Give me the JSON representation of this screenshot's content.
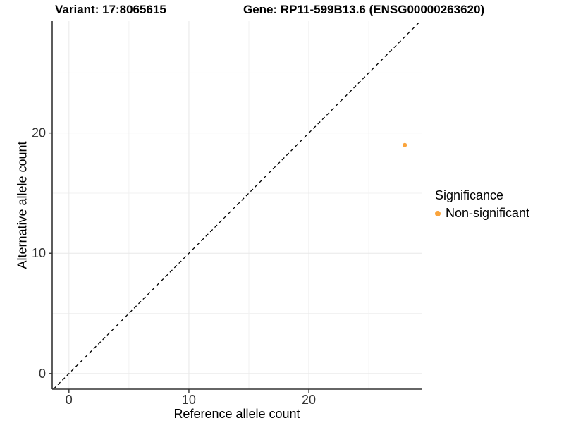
{
  "header": {
    "variant_title": "Variant: 17:8065615",
    "gene_title": "Gene: RP11-599B13.6 (ENSG00000263620)"
  },
  "chart_data": {
    "type": "scatter",
    "title_left": "Variant: 17:8065615",
    "title_right": "Gene: RP11-599B13.6 (ENSG00000263620)",
    "xlabel": "Reference allele count",
    "ylabel": "Alternative allele count",
    "xlim": [
      -1.4,
      29.4
    ],
    "ylim": [
      -1.3,
      29.3
    ],
    "x_major_ticks": [
      0,
      10,
      20
    ],
    "y_major_ticks": [
      0,
      10,
      20
    ],
    "x_minor_ticks": [
      5,
      15,
      25
    ],
    "y_minor_ticks": [
      5,
      15,
      25
    ],
    "grid": true,
    "identity_line": {
      "type": "y=x",
      "style": "dashed"
    },
    "series": [
      {
        "name": "Non-significant",
        "points": [
          {
            "x": 28,
            "y": 19
          }
        ]
      }
    ],
    "legend": {
      "position": "right",
      "title": "Significance",
      "entries": [
        {
          "label": "Non-significant",
          "color": "#FAA43C"
        }
      ]
    }
  },
  "colors": {
    "point_orange": "#FAA43C",
    "axis_line": "#333333",
    "tick_label": "#333333",
    "grid_major": "#E8E8E8",
    "grid_minor": "#F2F2F2",
    "identity_line": "#000000",
    "background": "#FFFFFF"
  }
}
